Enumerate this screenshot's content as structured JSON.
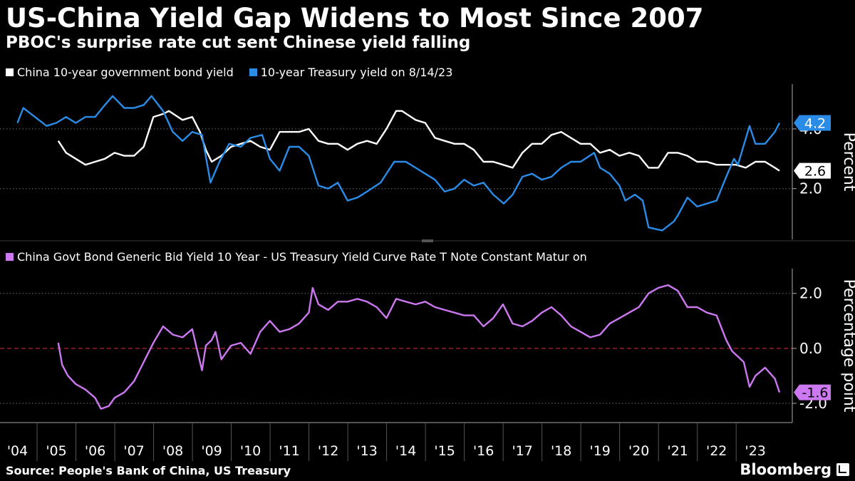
{
  "header": {
    "title": "US-China Yield Gap Widens to Most Since 2007",
    "subtitle": "PBOC's surprise rate cut sent Chinese yield falling"
  },
  "footer": {
    "source": "Source: People's Bank of China, US Treasury",
    "brand": "Bloomberg",
    "brand_icon": "bloomberg-terminal-icon"
  },
  "colors": {
    "background": "#000000",
    "china": "#ffffff",
    "treasury": "#2b8ce8",
    "spread": "#cc78f0",
    "zero_line": "#e0313f",
    "grid": "#6e6e6e"
  },
  "chart_data": [
    {
      "type": "line",
      "panel": "top",
      "ylabel": "Percent",
      "ylim": [
        0.3,
        5.5
      ],
      "yticks": [
        {
          "value": 2.0,
          "label": "2.0"
        },
        {
          "value": 4.0,
          "label": "4.0"
        }
      ],
      "grid": true,
      "legend_position": "top-left",
      "end_labels": [
        {
          "series": "10-year Treasury yield on 8/14/23",
          "value": 4.2,
          "label": "4.2"
        },
        {
          "series": "China 10-year government bond yield",
          "value": 2.6,
          "label": "2.6"
        }
      ],
      "series": [
        {
          "name": "China 10-year government bond yield",
          "color": "#ffffff",
          "x": [
            2005.05,
            2005.25,
            2005.5,
            2005.75,
            2006.0,
            2006.25,
            2006.5,
            2006.75,
            2007.0,
            2007.25,
            2007.5,
            2007.75,
            2007.9,
            2008.25,
            2008.5,
            2008.7,
            2008.85,
            2009.0,
            2009.25,
            2009.5,
            2009.75,
            2010.0,
            2010.25,
            2010.5,
            2010.75,
            2011.0,
            2011.25,
            2011.5,
            2011.75,
            2012.0,
            2012.25,
            2012.5,
            2012.75,
            2013.0,
            2013.25,
            2013.5,
            2013.75,
            2013.9,
            2014.25,
            2014.5,
            2014.75,
            2015.0,
            2015.25,
            2015.5,
            2015.75,
            2016.0,
            2016.25,
            2016.5,
            2016.75,
            2017.0,
            2017.25,
            2017.5,
            2017.75,
            2018.0,
            2018.25,
            2018.5,
            2018.75,
            2019.0,
            2019.25,
            2019.5,
            2019.75,
            2020.0,
            2020.25,
            2020.5,
            2020.75,
            2021.0,
            2021.25,
            2021.5,
            2021.75,
            2022.0,
            2022.25,
            2022.5,
            2022.75,
            2023.0,
            2023.25,
            2023.5,
            2023.62
          ],
          "values": [
            3.6,
            3.2,
            3.0,
            2.8,
            2.9,
            3.0,
            3.2,
            3.1,
            3.1,
            3.4,
            4.4,
            4.5,
            4.6,
            4.3,
            4.4,
            3.9,
            3.3,
            2.9,
            3.1,
            3.4,
            3.5,
            3.6,
            3.4,
            3.3,
            3.9,
            3.9,
            3.9,
            4.0,
            3.6,
            3.5,
            3.5,
            3.3,
            3.5,
            3.6,
            3.5,
            4.0,
            4.6,
            4.6,
            4.3,
            4.2,
            3.7,
            3.6,
            3.5,
            3.5,
            3.3,
            2.9,
            2.9,
            2.8,
            2.7,
            3.2,
            3.5,
            3.5,
            3.8,
            3.9,
            3.7,
            3.5,
            3.5,
            3.2,
            3.3,
            3.1,
            3.2,
            3.1,
            2.7,
            2.7,
            3.2,
            3.2,
            3.1,
            2.9,
            2.9,
            2.8,
            2.8,
            2.8,
            2.7,
            2.9,
            2.9,
            2.7,
            2.6
          ]
        },
        {
          "name": "10-year Treasury yield on 8/14/23",
          "color": "#2b8ce8",
          "x": [
            2004.0,
            2004.15,
            2004.35,
            2004.55,
            2004.75,
            2005.0,
            2005.25,
            2005.5,
            2005.75,
            2006.0,
            2006.25,
            2006.45,
            2006.75,
            2007.0,
            2007.25,
            2007.45,
            2007.75,
            2008.0,
            2008.25,
            2008.5,
            2008.75,
            2008.97,
            2009.2,
            2009.45,
            2009.75,
            2010.0,
            2010.3,
            2010.5,
            2010.75,
            2011.0,
            2011.25,
            2011.5,
            2011.75,
            2012.0,
            2012.25,
            2012.5,
            2012.75,
            2013.0,
            2013.35,
            2013.7,
            2014.0,
            2014.25,
            2014.5,
            2014.75,
            2015.0,
            2015.25,
            2015.5,
            2015.75,
            2016.0,
            2016.25,
            2016.52,
            2016.75,
            2017.0,
            2017.25,
            2017.5,
            2017.75,
            2018.0,
            2018.25,
            2018.5,
            2018.85,
            2019.0,
            2019.25,
            2019.5,
            2019.65,
            2019.9,
            2020.1,
            2020.25,
            2020.6,
            2020.9,
            2021.0,
            2021.25,
            2021.5,
            2021.75,
            2022.0,
            2022.25,
            2022.45,
            2022.55,
            2022.85,
            2023.0,
            2023.25,
            2023.5,
            2023.62
          ],
          "values": [
            4.2,
            4.7,
            4.5,
            4.3,
            4.1,
            4.2,
            4.4,
            4.2,
            4.4,
            4.4,
            4.8,
            5.1,
            4.7,
            4.7,
            4.8,
            5.1,
            4.6,
            3.9,
            3.6,
            3.9,
            3.8,
            2.2,
            2.9,
            3.5,
            3.4,
            3.7,
            3.8,
            3.0,
            2.6,
            3.4,
            3.4,
            3.1,
            2.1,
            2.0,
            2.2,
            1.6,
            1.7,
            1.9,
            2.2,
            2.9,
            2.9,
            2.7,
            2.5,
            2.3,
            1.9,
            2.0,
            2.3,
            2.1,
            2.2,
            1.8,
            1.5,
            1.8,
            2.4,
            2.5,
            2.3,
            2.4,
            2.7,
            2.9,
            2.9,
            3.2,
            2.7,
            2.5,
            2.1,
            1.6,
            1.8,
            1.6,
            0.7,
            0.6,
            0.9,
            1.1,
            1.7,
            1.4,
            1.5,
            1.6,
            2.4,
            3.0,
            2.8,
            4.1,
            3.5,
            3.5,
            3.9,
            4.2
          ]
        }
      ]
    },
    {
      "type": "line",
      "panel": "bottom",
      "ylabel": "Percentage point",
      "ylim": [
        -2.7,
        2.9
      ],
      "yticks": [
        {
          "value": 2.0,
          "label": "2.0"
        },
        {
          "value": 0.0,
          "label": "0.0"
        },
        {
          "value": -2.0,
          "label": "-2.0"
        }
      ],
      "grid": true,
      "zero_line": true,
      "legend_position": "top-left",
      "end_labels": [
        {
          "series": "China Govt Bond Generic Bid Yield 10 Year - US Treasury Yield Curve Rate T Note Constant Matur on",
          "value": -1.6,
          "label": "-1.6"
        }
      ],
      "series": [
        {
          "name": "China Govt Bond Generic Bid Yield 10 Year - US Treasury Yield Curve Rate T Note Constant Matur on",
          "color": "#cc78f0",
          "x": [
            2005.05,
            2005.15,
            2005.3,
            2005.5,
            2005.75,
            2006.0,
            2006.15,
            2006.35,
            2006.5,
            2006.75,
            2007.0,
            2007.25,
            2007.5,
            2007.75,
            2008.0,
            2008.25,
            2008.5,
            2008.65,
            2008.75,
            2008.85,
            2009.0,
            2009.1,
            2009.25,
            2009.5,
            2009.75,
            2010.0,
            2010.25,
            2010.5,
            2010.75,
            2011.0,
            2011.25,
            2011.5,
            2011.6,
            2011.75,
            2012.0,
            2012.25,
            2012.5,
            2012.75,
            2013.0,
            2013.25,
            2013.5,
            2013.75,
            2014.0,
            2014.25,
            2014.5,
            2014.75,
            2015.0,
            2015.25,
            2015.5,
            2015.75,
            2016.0,
            2016.25,
            2016.5,
            2016.75,
            2017.0,
            2017.25,
            2017.5,
            2017.75,
            2018.0,
            2018.25,
            2018.5,
            2018.75,
            2019.0,
            2019.25,
            2019.5,
            2019.75,
            2020.0,
            2020.25,
            2020.5,
            2020.75,
            2021.0,
            2021.25,
            2021.5,
            2021.75,
            2022.0,
            2022.25,
            2022.4,
            2022.55,
            2022.7,
            2022.85,
            2023.0,
            2023.25,
            2023.5,
            2023.62
          ],
          "values": [
            0.2,
            -0.6,
            -1.0,
            -1.3,
            -1.5,
            -1.8,
            -2.2,
            -2.1,
            -1.8,
            -1.6,
            -1.2,
            -0.5,
            0.2,
            0.8,
            0.5,
            0.4,
            0.7,
            -0.2,
            -0.8,
            0.1,
            0.3,
            0.6,
            -0.4,
            0.1,
            0.2,
            -0.2,
            0.6,
            1.0,
            0.6,
            0.7,
            0.9,
            1.3,
            2.2,
            1.6,
            1.4,
            1.7,
            1.7,
            1.8,
            1.7,
            1.5,
            1.1,
            1.8,
            1.7,
            1.6,
            1.7,
            1.5,
            1.4,
            1.3,
            1.2,
            1.2,
            0.8,
            1.1,
            1.6,
            0.9,
            0.8,
            1.0,
            1.3,
            1.5,
            1.2,
            0.8,
            0.6,
            0.4,
            0.5,
            0.9,
            1.1,
            1.3,
            1.5,
            2.0,
            2.2,
            2.3,
            2.1,
            1.5,
            1.5,
            1.3,
            1.2,
            0.3,
            -0.1,
            -0.3,
            -0.5,
            -1.4,
            -1.0,
            -0.7,
            -1.1,
            -1.6
          ]
        }
      ]
    },
    {
      "type": "axis",
      "role": "shared-x",
      "xlim": [
        2003.55,
        2023.95
      ],
      "xticks": [
        {
          "value": 2004,
          "label": "'04"
        },
        {
          "value": 2005,
          "label": "'05"
        },
        {
          "value": 2006,
          "label": "'06"
        },
        {
          "value": 2007,
          "label": "'07"
        },
        {
          "value": 2008,
          "label": "'08"
        },
        {
          "value": 2009,
          "label": "'09"
        },
        {
          "value": 2010,
          "label": "'10"
        },
        {
          "value": 2011,
          "label": "'11"
        },
        {
          "value": 2012,
          "label": "'12"
        },
        {
          "value": 2013,
          "label": "'13"
        },
        {
          "value": 2014,
          "label": "'14"
        },
        {
          "value": 2015,
          "label": "'15"
        },
        {
          "value": 2016,
          "label": "'16"
        },
        {
          "value": 2017,
          "label": "'17"
        },
        {
          "value": 2018,
          "label": "'18"
        },
        {
          "value": 2019,
          "label": "'19"
        },
        {
          "value": 2020,
          "label": "'20"
        },
        {
          "value": 2021,
          "label": "'21"
        },
        {
          "value": 2022,
          "label": "'22"
        },
        {
          "value": 2023,
          "label": "'23"
        }
      ]
    }
  ]
}
